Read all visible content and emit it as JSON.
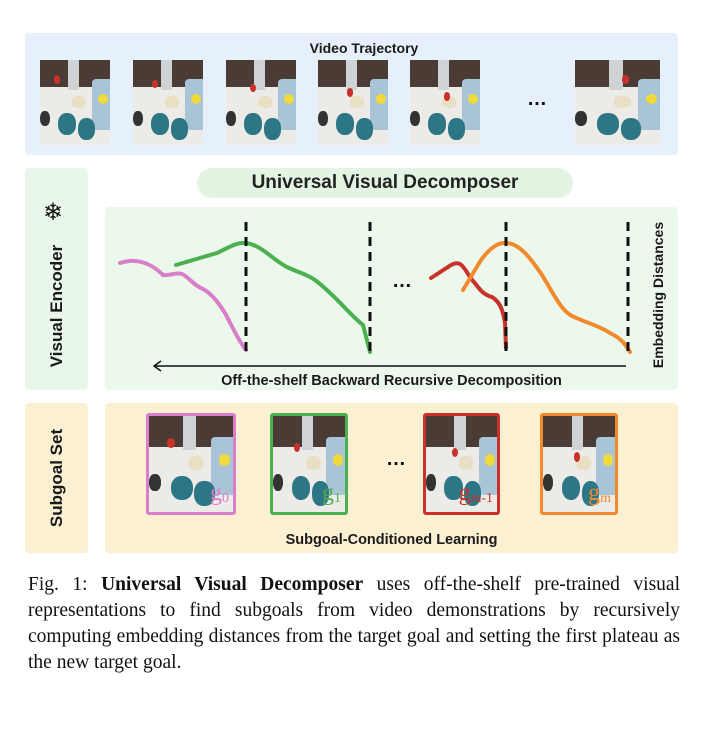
{
  "video_trajectory": {
    "title": "Video Trajectory",
    "ellipsis": "…"
  },
  "visual_encoder": {
    "label": "Visual Encoder",
    "icon": "snowflake-icon",
    "icon_glyph": "❄"
  },
  "decomposer": {
    "title": "Universal Visual Decomposer",
    "axis_label": "Embedding Distances",
    "arrow_label": "Off-the-shelf Backward Recursive Decomposition",
    "ellipsis": "…",
    "colors": {
      "pink": "#d97fc9",
      "green": "#4caf50",
      "red": "#c9322a",
      "orange": "#f08a2c"
    }
  },
  "subgoal_set": {
    "label": "Subgoal Set",
    "arrow_label": "Subgoal-Conditioned Learning",
    "ellipsis": "…",
    "subgoals": [
      {
        "base": "g",
        "sub": "0",
        "color": "#d97fc9"
      },
      {
        "base": "g",
        "sub": "1",
        "color": "#4caf50"
      },
      {
        "base": "g",
        "sub": "m-1",
        "color": "#c9322a"
      },
      {
        "base": "g",
        "sub": "m",
        "color": "#f08a2c"
      }
    ]
  },
  "caption": {
    "prefix": "Fig. 1: ",
    "bold": "Universal Visual Decomposer",
    "text": " uses off-the-shelf pre-trained visual representations to find subgoals from video demonstrations by recursively computing embedding distances from the target goal and setting the first plateau as the new target goal."
  }
}
